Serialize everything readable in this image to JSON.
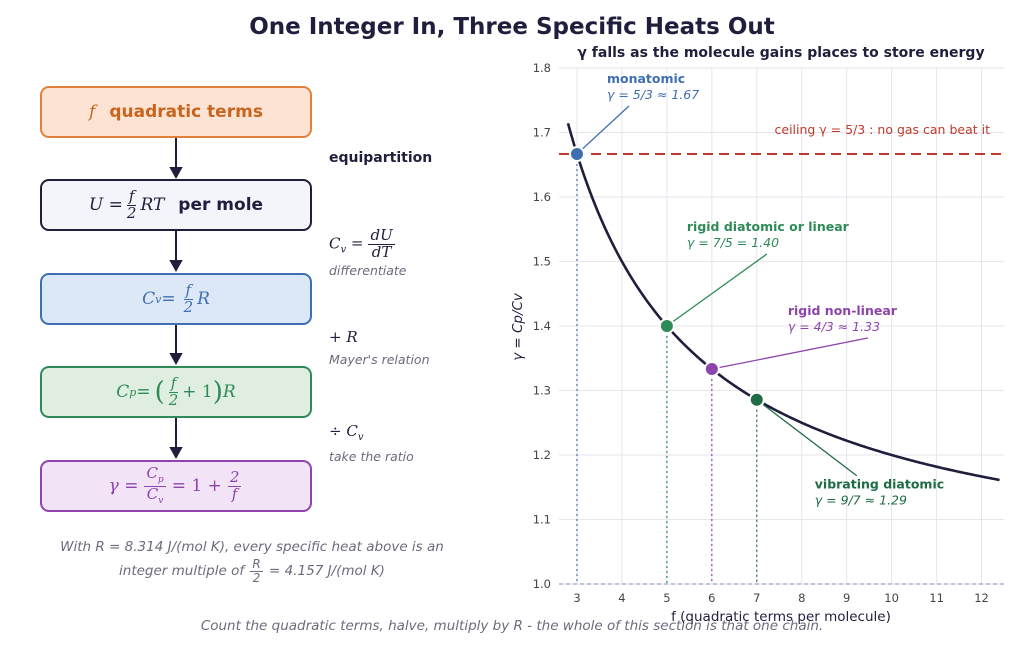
{
  "title": "One Integer In, Three Specific Heats Out",
  "flow": {
    "box1": {
      "var": "f",
      "text": "quadratic terms",
      "color": "#c8641e",
      "border": "#e0823c",
      "bg": "#fde3d4"
    },
    "box2": {
      "lhs": "U =",
      "num": "f",
      "den": "2",
      "rhs": "RT",
      "text": "per mole"
    },
    "box3": {
      "lhs": "C",
      "sub": "v",
      "eq": " =",
      "num": "f",
      "den": "2",
      "rhs": "R"
    },
    "box4": {
      "lhs": "C",
      "sub": "p",
      "eq": " =",
      "open": "(",
      "num": "f",
      "den": "2",
      "plus": "+ 1",
      "close": ")",
      "rhs": "R"
    },
    "box5": {
      "lhs": "γ =",
      "num_c": "C",
      "num_s": "p",
      "den_c": "C",
      "den_s": "v",
      "mid": "= 1 +",
      "num2": "2",
      "den2": "f"
    },
    "steps": {
      "s1_label": "equipartition",
      "s2_lhs": "C",
      "s2_sub": "v",
      "s2_eq": " =",
      "s2_num": "dU",
      "s2_den": "dT",
      "s2_note": "differentiate",
      "s3_eq": "+ R",
      "s3_note": "Mayer's relation",
      "s4_eq": "÷ C",
      "s4_sub": "v",
      "s4_note": "take the ratio"
    }
  },
  "note": {
    "line1": "With R = 8.314  J/(mol K), every specific heat above is an",
    "line2_pre": "integer multiple of",
    "num": "R",
    "den": "2",
    "line2_post": "= 4.157  J/(mol K)"
  },
  "footer": "Count the quadratic terms, halve, multiply by R - the whole of this section is that one chain.",
  "chart_data": {
    "type": "line",
    "title": "γ falls as the molecule gains places to store energy",
    "xlabel": "f  (quadratic terms per molecule)",
    "ylabel": "γ = Cp/Cv",
    "xlim": [
      2.6,
      12.5
    ],
    "ylim": [
      1.0,
      1.8
    ],
    "xticks": [
      3,
      4,
      5,
      6,
      7,
      8,
      9,
      10,
      11,
      12
    ],
    "yticks": [
      1.0,
      1.1,
      1.2,
      1.3,
      1.4,
      1.5,
      1.6,
      1.7,
      1.8
    ],
    "grid": true,
    "curve": {
      "formula": "1 + 2/f",
      "x_range": [
        2.8,
        12.4
      ],
      "color": "#1f1f3d"
    },
    "ceiling": {
      "y": 1.6667,
      "label": "ceiling  γ = 5/3 :  no gas can beat it",
      "color": "#c0392b"
    },
    "baseline": {
      "y": 1.0
    },
    "points": [
      {
        "x": 3,
        "y": 1.6667,
        "name": "monatomic",
        "value_label": "γ = 5/3 ≈ 1.67",
        "color": "#3f6fb0"
      },
      {
        "x": 5,
        "y": 1.4,
        "name": "rigid diatomic or linear",
        "value_label": "γ = 7/5 = 1.40",
        "color": "#2e8b57"
      },
      {
        "x": 6,
        "y": 1.3333,
        "name": "rigid non-linear",
        "value_label": "γ = 4/3 ≈ 1.33",
        "color": "#8e44ad"
      },
      {
        "x": 7,
        "y": 1.2857,
        "name": "vibrating diatomic",
        "value_label": "γ = 9/7 ≈ 1.29",
        "color": "#1e6b45"
      }
    ]
  }
}
